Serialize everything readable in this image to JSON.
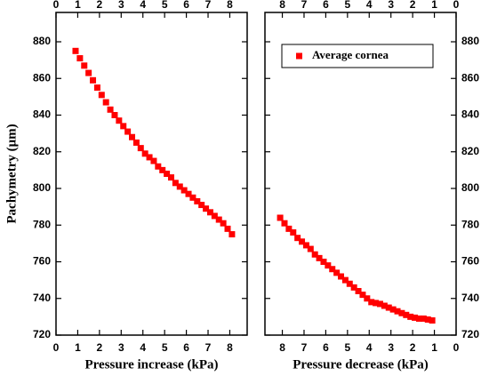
{
  "chart_data": [
    {
      "type": "scatter",
      "ylabel": "Pachymetry (μm)",
      "xlabel": "Pressure increase (kPa)",
      "xlim": [
        0,
        8.8
      ],
      "xticks": [
        0,
        1,
        2,
        3,
        4,
        5,
        6,
        7,
        8
      ],
      "ylim": [
        720,
        896
      ],
      "yticks": [
        720,
        740,
        760,
        780,
        800,
        820,
        840,
        860,
        880
      ],
      "x": [
        0.9,
        1.1,
        1.3,
        1.5,
        1.7,
        1.9,
        2.1,
        2.3,
        2.5,
        2.7,
        2.9,
        3.1,
        3.3,
        3.5,
        3.7,
        3.9,
        4.1,
        4.3,
        4.5,
        4.7,
        4.9,
        5.1,
        5.3,
        5.5,
        5.7,
        5.9,
        6.1,
        6.3,
        6.5,
        6.7,
        6.9,
        7.1,
        7.3,
        7.5,
        7.7,
        7.9,
        8.1
      ],
      "series": [
        {
          "color": "#ff0000",
          "values": [
            875,
            871,
            867,
            863,
            859,
            855,
            851,
            847,
            843,
            840,
            837,
            834,
            831,
            828,
            825,
            822,
            819,
            817,
            815,
            812,
            810,
            808,
            806,
            803,
            801,
            799,
            797,
            795,
            793,
            791,
            789,
            787,
            785,
            783,
            781,
            778,
            775
          ]
        }
      ]
    },
    {
      "type": "scatter",
      "xlabel": "Pressure decrease (kPa)",
      "legend": "upper right",
      "xlim": [
        8.8,
        0
      ],
      "xticks": [
        8,
        7,
        6,
        5,
        4,
        3,
        2,
        1,
        0
      ],
      "ylim": [
        720,
        896
      ],
      "yticks": [
        720,
        740,
        760,
        780,
        800,
        820,
        840,
        860,
        880
      ],
      "x": [
        8.1,
        7.9,
        7.7,
        7.5,
        7.3,
        7.1,
        6.9,
        6.7,
        6.5,
        6.3,
        6.1,
        5.9,
        5.7,
        5.5,
        5.3,
        5.1,
        4.9,
        4.7,
        4.5,
        4.3,
        4.1,
        3.9,
        3.7,
        3.5,
        3.3,
        3.1,
        2.9,
        2.7,
        2.5,
        2.3,
        2.1,
        1.9,
        1.7,
        1.5,
        1.3,
        1.1
      ],
      "series": [
        {
          "name": "Average cornea",
          "color": "#ff0000",
          "values": [
            784,
            781,
            778,
            776,
            773,
            771,
            769,
            767,
            764,
            762,
            760,
            758,
            756,
            754,
            752,
            750,
            748,
            746,
            744,
            742,
            740,
            738,
            737.5,
            737,
            736,
            735,
            734,
            733,
            732,
            731,
            730,
            729.5,
            729,
            729,
            728.5,
            728
          ]
        }
      ]
    }
  ]
}
